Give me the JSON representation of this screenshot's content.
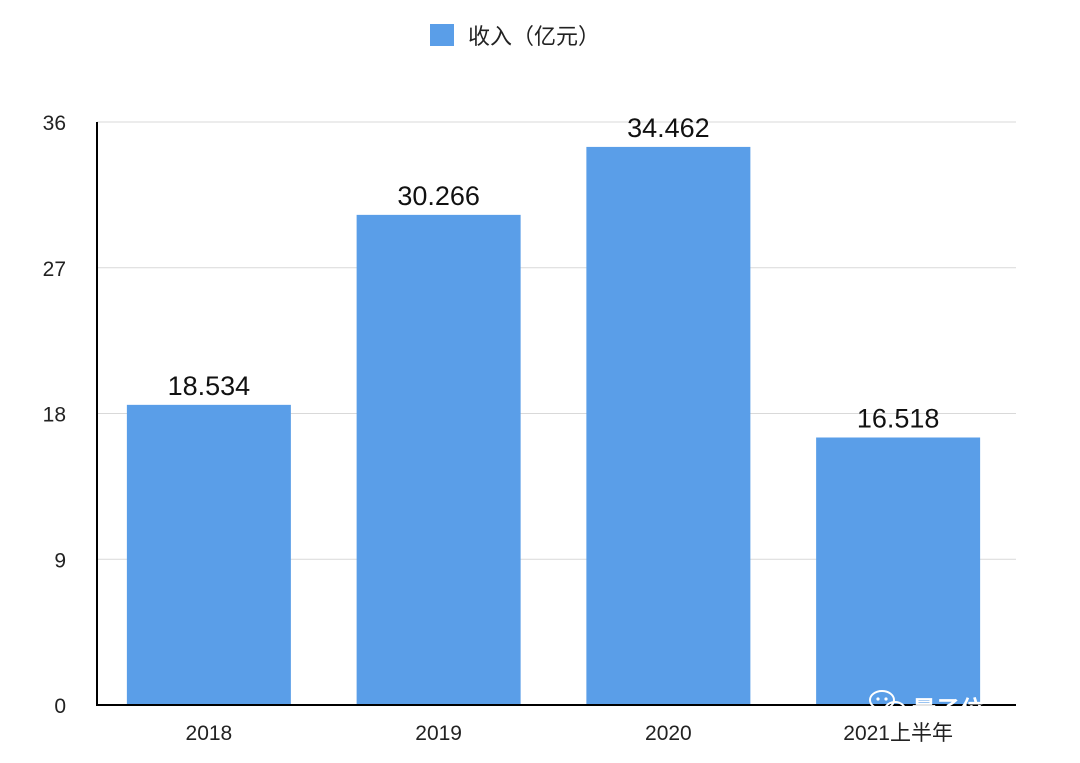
{
  "chart_data": {
    "type": "bar",
    "categories": [
      "2018",
      "2019",
      "2020",
      "2021上半年"
    ],
    "series": [
      {
        "name": "收入（亿元）",
        "values": [
          18.534,
          30.266,
          34.462,
          16.518
        ],
        "data_labels": [
          "18.534",
          "30.266",
          "34.462",
          "16.518"
        ]
      }
    ],
    "ylim": [
      0,
      36
    ],
    "yticks": [
      0,
      9,
      18,
      27,
      36
    ],
    "grid": true,
    "legend_position": "top-center",
    "bar_color": "#5a9ee8"
  },
  "watermark": {
    "text": "量子位",
    "icon": "wechat-icon"
  }
}
